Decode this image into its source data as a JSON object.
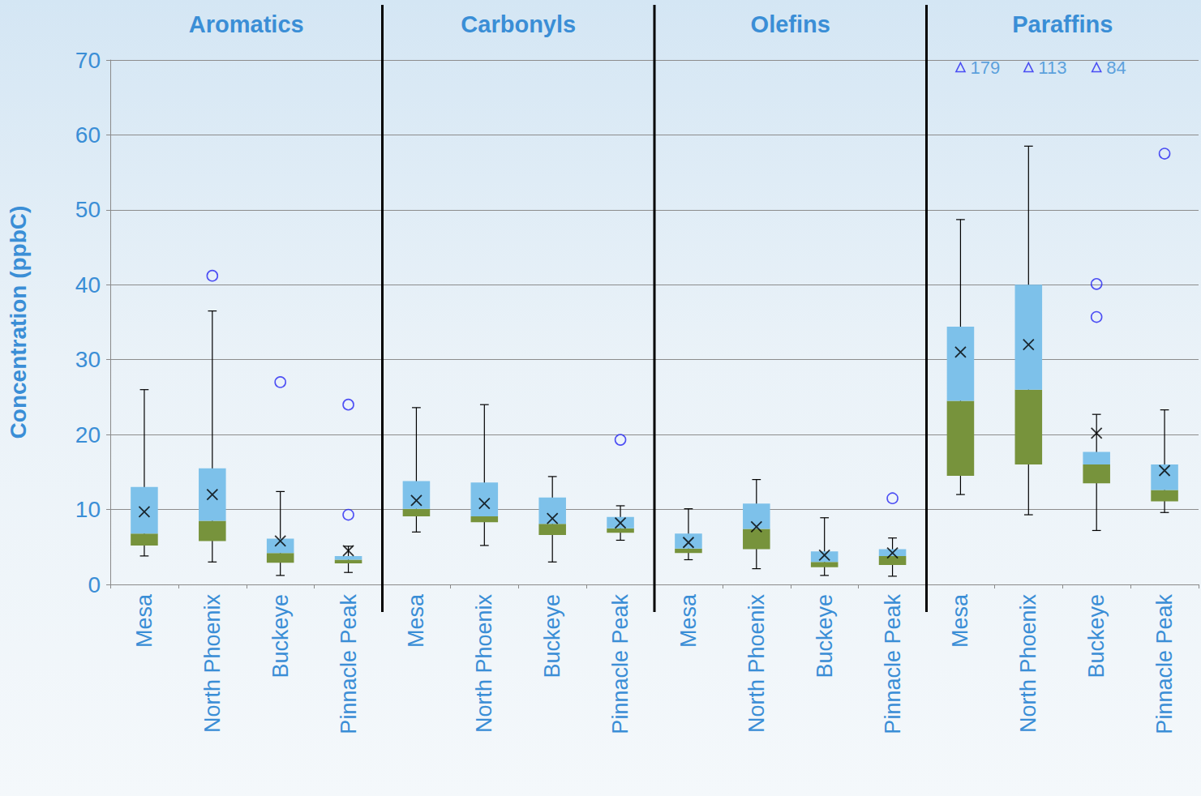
{
  "chart_data": {
    "type": "boxplot",
    "y_label": "Concentration (ppbC)",
    "ylim": [
      0,
      70
    ],
    "yticks": [
      0,
      10,
      20,
      30,
      40,
      50,
      60,
      70
    ],
    "grid": true,
    "colors": [
      "#77933c",
      "#7dc1ea"
    ],
    "color": "#2626f2",
    "marker": "x",
    "groups": [
      {
        "title": "Aromatics",
        "categories": [
          "Mesa",
          "North Phoenix",
          "Buckeye",
          "Pinnacle Peak"
        ],
        "boxes": [
          [
            3.8,
            5.2,
            6.8,
            13,
            26
          ],
          [
            3,
            5.8,
            8.5,
            15.5,
            36.5
          ],
          [
            1.2,
            2.9,
            4.2,
            6.1,
            12.4
          ],
          [
            1.6,
            2.8,
            3.3,
            3.8,
            5.1
          ]
        ],
        "means": [
          9.7,
          12,
          5.8,
          4.5
        ],
        "outliers": [
          [],
          [
            41.2
          ],
          [
            27
          ],
          [
            24,
            9.3
          ]
        ]
      },
      {
        "title": "Carbonyls",
        "categories": [
          "Mesa",
          "North Phoenix",
          "Buckeye",
          "Pinnacle Peak"
        ],
        "boxes": [
          [
            7,
            9.1,
            10.1,
            13.8,
            23.6
          ],
          [
            5.2,
            8.3,
            9.1,
            13.6,
            24
          ],
          [
            3,
            6.6,
            8.1,
            11.6,
            14.4
          ],
          [
            5.9,
            6.9,
            7.5,
            9,
            10.5
          ]
        ],
        "means": [
          11.2,
          10.8,
          8.8,
          8.2
        ],
        "outliers": [
          [],
          [],
          [],
          [
            19.3
          ]
        ]
      },
      {
        "title": "Olefins",
        "categories": [
          "Mesa",
          "North Phoenix",
          "Buckeye",
          "Pinnacle Peak"
        ],
        "boxes": [
          [
            3.3,
            4.2,
            4.8,
            6.8,
            10.1
          ],
          [
            2.1,
            4.7,
            7.4,
            10.8,
            14
          ],
          [
            1.2,
            2.3,
            3,
            4.4,
            8.9
          ],
          [
            1.1,
            2.6,
            3.8,
            4.7,
            6.2
          ]
        ],
        "means": [
          5.6,
          7.7,
          3.9,
          4.2
        ],
        "outliers": [
          [],
          [],
          [],
          [
            11.5
          ]
        ]
      },
      {
        "title": "Paraffins",
        "categories": [
          "Mesa",
          "North Phoenix",
          "Buckeye",
          "Pinnacle Peak"
        ],
        "boxes": [
          [
            12,
            14.5,
            24.5,
            34.4,
            48.7
          ],
          [
            9.3,
            16,
            26,
            40,
            58.5
          ],
          [
            7.2,
            13.5,
            16,
            17.7,
            22.7
          ],
          [
            9.6,
            11.1,
            12.6,
            16,
            23.3
          ]
        ],
        "means": [
          31,
          32,
          20.2,
          15.2
        ],
        "outliers": [
          [
            179
          ],
          [
            113
          ],
          [
            84,
            40.1,
            35.7
          ],
          [
            57.5
          ]
        ]
      }
    ]
  }
}
